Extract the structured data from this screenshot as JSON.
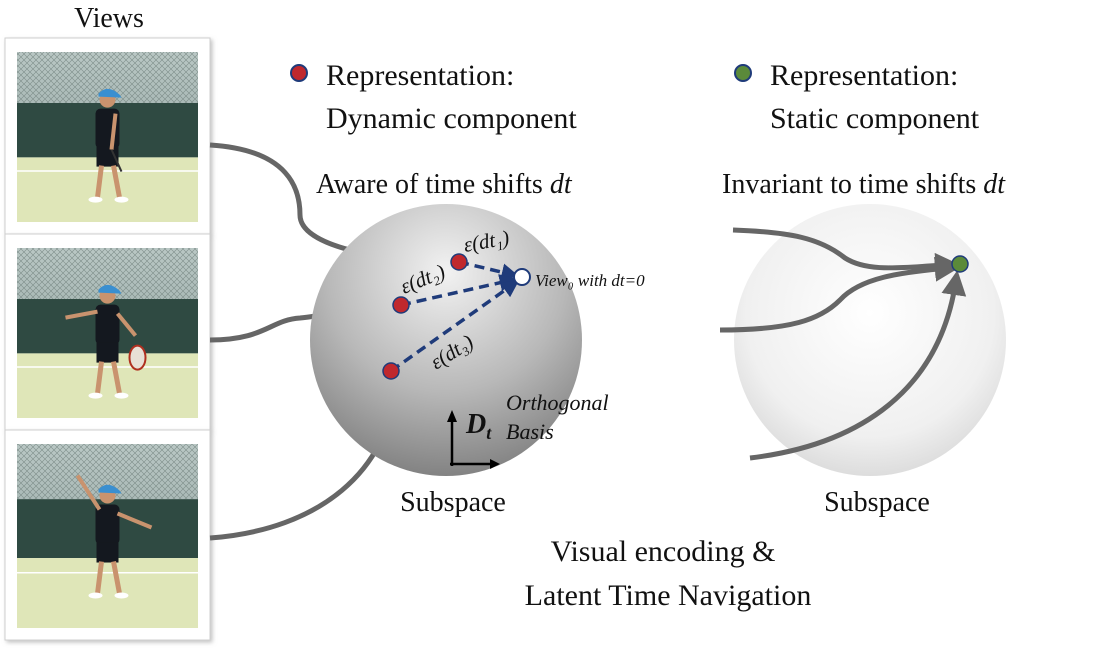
{
  "views_title": "Views",
  "legend": {
    "dynamic": {
      "line1": "Representation:",
      "line2": "Dynamic component",
      "color": "#c0282d"
    },
    "static": {
      "line1": "Representation:",
      "line2": "Static component",
      "color": "#5b8a3a"
    }
  },
  "dynamic_space": {
    "caption_prefix": "Aware of time shifts ",
    "caption_var": "dt",
    "eps1": "ε(dt₁)",
    "eps2": "ε(dt₂)",
    "eps3": "ε(dt₃)",
    "view0_label": "View₀ with dt=0",
    "basis_symbol": "D",
    "basis_sub": "t",
    "basis_label_line1": "Orthogonal",
    "basis_label_line2": "Basis",
    "subspace_label": "Subspace"
  },
  "static_space": {
    "caption_prefix": "Invariant to time shifts ",
    "caption_var": "dt",
    "subspace_label": "Subspace"
  },
  "footer": {
    "line1": "Visual encoding &",
    "line2": "Latent Time Navigation"
  },
  "colors": {
    "arrow": "#666666",
    "dashed": "#1f3b7a",
    "dot_outline": "#1f3b7a"
  }
}
